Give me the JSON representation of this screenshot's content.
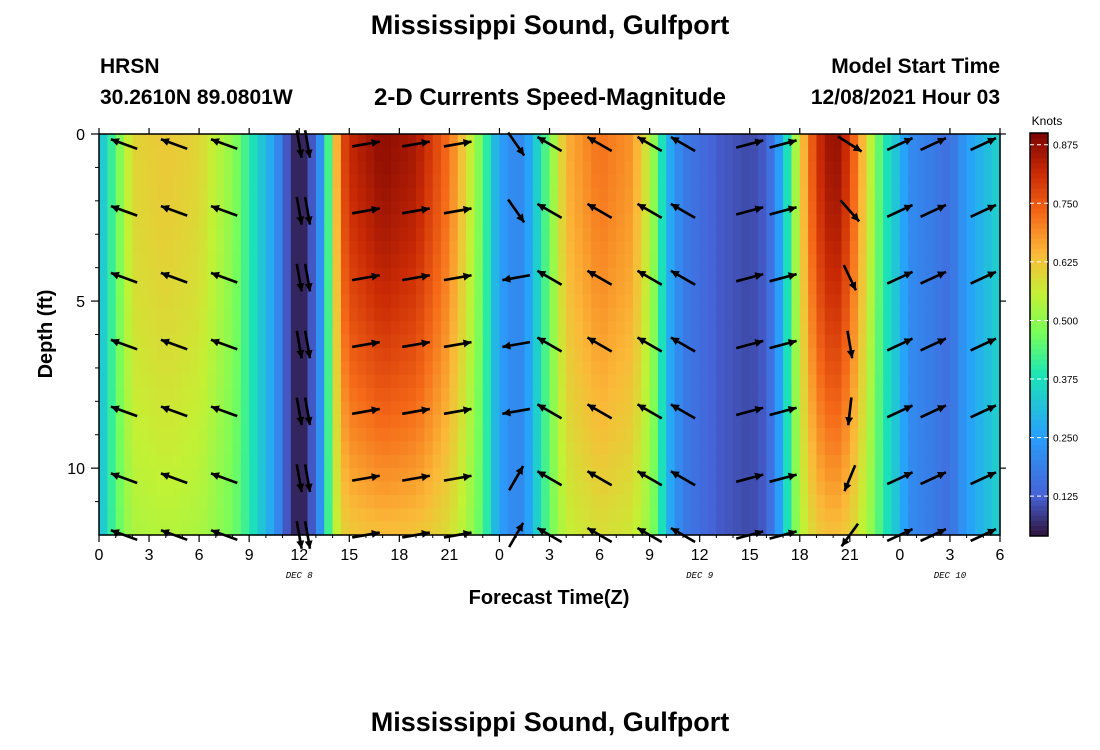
{
  "header": {
    "title": "Mississippi Sound, Gulfport",
    "station": "HRSN",
    "coords": "30.2610N  89.0801W",
    "subtitle": "2-D Currents Speed-Magnitude",
    "model_label": "Model Start Time",
    "model_time": "12/08/2021 Hour 03",
    "footer_title": "Mississippi Sound, Gulfport"
  },
  "chart_data": {
    "type": "heatmap",
    "title": "2-D Currents Speed-Magnitude",
    "xlabel": "Forecast Time(Z)",
    "ylabel": "Depth (ft)",
    "x_ticks": [
      "0",
      "3",
      "6",
      "9",
      "12",
      "15",
      "18",
      "21",
      "0",
      "3",
      "6",
      "9",
      "12",
      "15",
      "18",
      "21",
      "0",
      "3",
      "6"
    ],
    "y_ticks": [
      "0",
      "5",
      "10"
    ],
    "ylim": [
      0,
      12
    ],
    "y_inverted": true,
    "date_labels": [
      {
        "label": "DEC 8",
        "tick_index": 4
      },
      {
        "label": "DEC 9",
        "tick_index": 12
      },
      {
        "label": "DEC 10",
        "tick_index": 17
      }
    ],
    "colorbar": {
      "label": "Knots",
      "range": [
        0.04,
        0.9
      ],
      "ticks": [
        "0.875",
        "0.750",
        "0.625",
        "0.500",
        "0.375",
        "0.250",
        "0.125"
      ],
      "tick_values": [
        0.875,
        0.75,
        0.625,
        0.5,
        0.375,
        0.25,
        0.125
      ]
    },
    "speed_profile_hours": [
      0,
      2,
      4,
      6,
      8,
      9,
      10,
      10.5,
      11,
      11.5,
      12,
      12.5,
      13,
      13.5,
      14,
      14.5,
      15,
      17,
      19,
      21,
      22,
      23,
      23.5,
      24,
      25,
      25.5,
      26,
      28,
      30,
      32,
      33,
      33.5,
      34,
      35,
      37,
      39,
      40,
      40.5,
      41,
      42,
      43,
      44,
      44.5,
      45,
      46,
      47,
      48,
      48.5,
      49,
      50,
      51,
      51.5,
      52,
      53,
      54
    ],
    "speed_profile_knots": [
      0.3,
      0.6,
      0.62,
      0.6,
      0.5,
      0.4,
      0.3,
      0.25,
      0.15,
      0.08,
      0.04,
      0.08,
      0.15,
      0.3,
      0.55,
      0.75,
      0.82,
      0.88,
      0.85,
      0.72,
      0.6,
      0.45,
      0.35,
      0.25,
      0.2,
      0.22,
      0.3,
      0.65,
      0.72,
      0.68,
      0.55,
      0.45,
      0.3,
      0.18,
      0.12,
      0.1,
      0.12,
      0.2,
      0.3,
      0.6,
      0.8,
      0.88,
      0.85,
      0.78,
      0.6,
      0.4,
      0.3,
      0.22,
      0.2,
      0.18,
      0.15,
      0.2,
      0.25,
      0.3,
      0.35
    ],
    "arrow_hours": [
      1.5,
      4.5,
      7.5,
      12,
      12.5,
      16,
      19,
      21.5,
      25,
      27,
      30,
      33,
      35,
      39,
      41,
      45,
      48,
      50,
      53
    ],
    "arrow_depths_ft": [
      0.3,
      2.3,
      4.3,
      6.3,
      8.3,
      10.3,
      12
    ]
  }
}
